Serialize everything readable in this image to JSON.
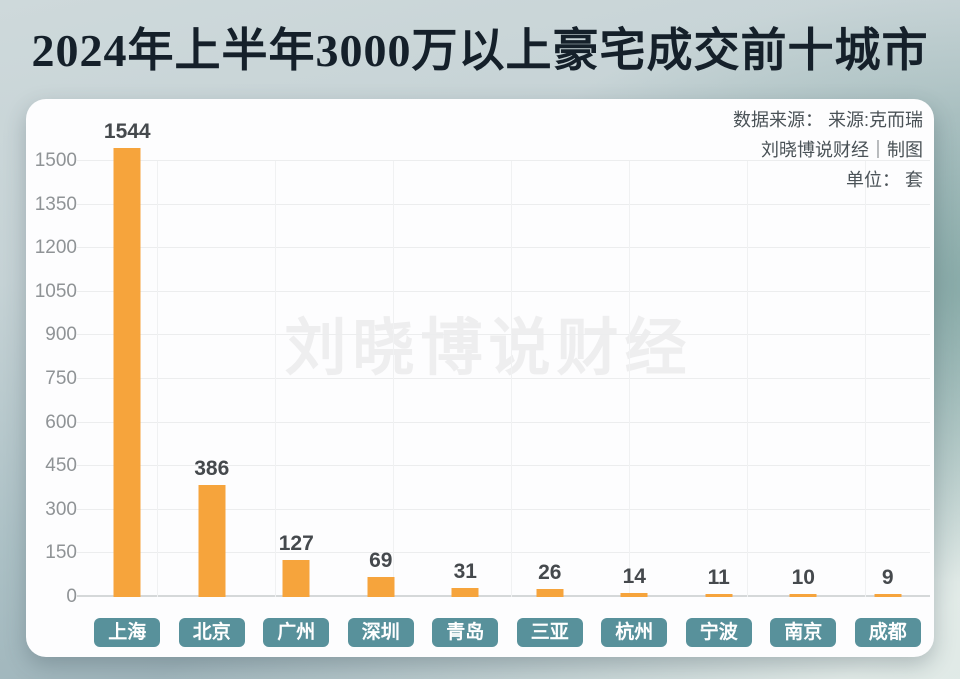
{
  "header": {
    "title": "2024年上半年3000万以上豪宅成交前十城市"
  },
  "meta": {
    "source_line": "数据来源： 来源:克而瑞",
    "credit_line": "刘晓博说财经｜制图",
    "unit_line": "单位： 套"
  },
  "watermark": {
    "text": "刘晓博说财经"
  },
  "colors": {
    "bar": "#F6A43C",
    "chip_bg": "#58919B",
    "chip_text": "#FFFFFF",
    "value_label": "#45494D",
    "axis_label": "#8F9396",
    "gridline": "#ECEDEE",
    "vgridline": "#F0F1F2",
    "axis_line": "#D5D8D9",
    "title": "#15202A",
    "meta_text": "#4A5257",
    "watermark": "#EEEEEF",
    "card_bg": "#FDFDFE"
  },
  "chart_data": {
    "type": "bar",
    "title": "2024年上半年3000万以上豪宅成交前十城市",
    "unit": "套",
    "categories": [
      "上海",
      "北京",
      "广州",
      "深圳",
      "青岛",
      "三亚",
      "杭州",
      "宁波",
      "南京",
      "成都"
    ],
    "values": [
      1544,
      386,
      127,
      69,
      31,
      26,
      14,
      11,
      10,
      9
    ],
    "xlabel": "",
    "ylabel": "",
    "ylim": [
      0,
      1500
    ],
    "ytick_step": 150,
    "grid": true,
    "legend": false,
    "bar_color": "#F6A43C"
  }
}
